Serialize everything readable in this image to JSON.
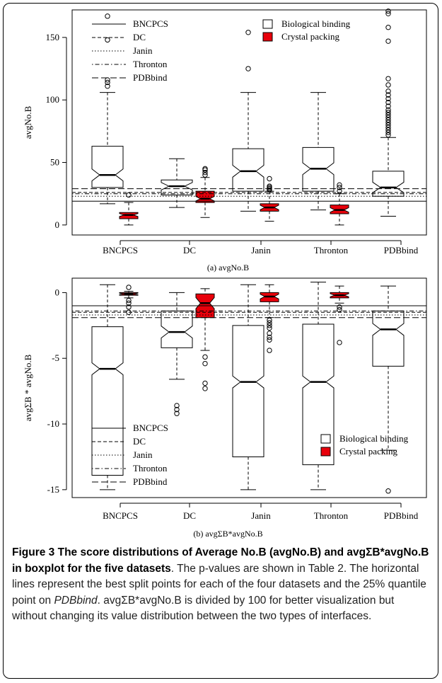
{
  "chart_data": [
    {
      "type": "boxplot",
      "subcaption": "(a) avgNo.B",
      "ylabel": "avgNo.B",
      "ylim": [
        -8,
        172
      ],
      "yticks": [
        0,
        50,
        100,
        150
      ],
      "categories": [
        "BNCPCS",
        "DC",
        "Janin",
        "Thronton",
        "PDBbind"
      ],
      "series": [
        {
          "name": "Biological binding",
          "boxes": [
            {
              "category": "BNCPCS",
              "whisker_low": 17,
              "q1": 30,
              "median": 40,
              "q3": 63,
              "whisker_high": 106,
              "outliers": [
                111,
                114,
                116,
                148,
                167
              ]
            },
            {
              "category": "DC",
              "whisker_low": 14,
              "q1": 24,
              "median": 31,
              "q3": 36,
              "whisker_high": 53,
              "outliers": []
            },
            {
              "category": "Janin",
              "whisker_low": 11,
              "q1": 27,
              "median": 43,
              "q3": 61,
              "whisker_high": 106,
              "outliers": [
                125,
                154
              ]
            },
            {
              "category": "Thronton",
              "whisker_low": 12,
              "q1": 27,
              "median": 45,
              "q3": 62,
              "whisker_high": 106,
              "outliers": []
            },
            {
              "category": "PDBbind",
              "whisker_low": 7,
              "q1": 23,
              "median": 30,
              "q3": 43,
              "whisker_high": 70,
              "outliers": [
                72,
                74,
                76,
                78,
                80,
                82,
                84,
                86,
                88,
                90,
                92,
                95,
                98,
                101,
                104,
                107,
                112,
                117,
                147,
                158,
                169,
                171
              ]
            }
          ]
        },
        {
          "name": "Crystal packing",
          "boxes": [
            {
              "category": "BNCPCS",
              "whisker_low": 0,
              "q1": 5,
              "median": 8,
              "q3": 10,
              "whisker_high": 18,
              "outliers": [
                24
              ]
            },
            {
              "category": "DC",
              "whisker_low": 6,
              "q1": 18,
              "median": 21,
              "q3": 27,
              "whisker_high": 38,
              "outliers": [
                40,
                42,
                44,
                45
              ]
            },
            {
              "category": "Janin",
              "whisker_low": 3,
              "q1": 11,
              "median": 14,
              "q3": 17,
              "whisker_high": 27,
              "outliers": [
                28,
                29,
                30,
                31,
                37
              ]
            },
            {
              "category": "Thronton",
              "whisker_low": 0,
              "q1": 9,
              "median": 12,
              "q3": 16,
              "whisker_high": 25,
              "outliers": [
                27,
                30,
                32
              ]
            }
          ]
        }
      ],
      "reference_lines": [
        {
          "name": "BNCPCS",
          "style": "solid",
          "value": 19
        },
        {
          "name": "DC",
          "style": "dashed",
          "value": 26
        },
        {
          "name": "Janin",
          "style": "dotted",
          "value": 23
        },
        {
          "name": "Thronton",
          "style": "dotdash",
          "value": 25
        },
        {
          "name": "PDBbind",
          "style": "longdash",
          "value": 29
        }
      ],
      "legend_placement": "top"
    },
    {
      "type": "boxplot",
      "subcaption": "(b) avgΣB*avgNo.B",
      "ylabel": "avgΣB * avgNo.B",
      "ylim": [
        -15.6,
        1.1
      ],
      "yticks": [
        0,
        -5,
        -10,
        -15
      ],
      "categories": [
        "BNCPCS",
        "DC",
        "Janin",
        "Thronton",
        "PDBbind"
      ],
      "series": [
        {
          "name": "Biological binding",
          "boxes": [
            {
              "category": "BNCPCS",
              "whisker_low": -15,
              "q1": -13.9,
              "median": -5.8,
              "q3": -2.6,
              "whisker_high": 0.6,
              "outliers": []
            },
            {
              "category": "DC",
              "whisker_low": -6.6,
              "q1": -4.2,
              "median": -3.0,
              "q3": -1.4,
              "whisker_high": 0,
              "outliers": [
                -8.6,
                -8.9,
                -9.2
              ]
            },
            {
              "category": "Janin",
              "whisker_low": -15,
              "q1": -12.5,
              "median": -6.8,
              "q3": -2.5,
              "whisker_high": 0.6,
              "outliers": []
            },
            {
              "category": "Thronton",
              "whisker_low": -15,
              "q1": -13.1,
              "median": -6.8,
              "q3": -2.4,
              "whisker_high": 0.8,
              "outliers": []
            },
            {
              "category": "PDBbind",
              "whisker_low": -12,
              "q1": -5.6,
              "median": -2.8,
              "q3": -1.4,
              "whisker_high": 0.5,
              "outliers": [
                -15.1
              ]
            }
          ]
        },
        {
          "name": "Crystal packing",
          "boxes": [
            {
              "category": "BNCPCS",
              "whisker_low": -0.4,
              "q1": -0.2,
              "median": -0.1,
              "q3": 0,
              "whisker_high": 0.1,
              "outliers": [
                0.4,
                -0.6,
                -0.8,
                -1.1,
                -1.5
              ]
            },
            {
              "category": "DC",
              "whisker_low": -4.4,
              "q1": -1.9,
              "median": -0.8,
              "q3": -0.1,
              "whisker_high": 0.3,
              "outliers": [
                -4.9,
                -5.4,
                -6.9,
                -7.3
              ]
            },
            {
              "category": "Janin",
              "whisker_low": -1.9,
              "q1": -0.7,
              "median": -0.3,
              "q3": 0,
              "whisker_high": 0.6,
              "outliers": [
                -2.1,
                -2.3,
                -2.5,
                -2.7,
                -3.1,
                -3.4,
                -3.6,
                -4.4
              ]
            },
            {
              "category": "Thronton",
              "whisker_low": -0.8,
              "q1": -0.4,
              "median": -0.2,
              "q3": 0,
              "whisker_high": 0.5,
              "outliers": [
                -1.1,
                -1.3,
                -3.8
              ]
            }
          ]
        }
      ],
      "reference_lines": [
        {
          "name": "BNCPCS",
          "style": "solid",
          "value": -1.0
        },
        {
          "name": "DC",
          "style": "dashed",
          "value": -1.5
        },
        {
          "name": "Janin",
          "style": "dotted",
          "value": -1.7
        },
        {
          "name": "Thronton",
          "style": "dotdash",
          "value": -1.4
        },
        {
          "name": "PDBbind",
          "style": "longdash",
          "value": -1.9
        }
      ],
      "legend_placement": "bottom"
    }
  ],
  "colors": {
    "biological_fill": "#ffffff",
    "crystal_fill": "#e8000b",
    "stroke": "#000000"
  },
  "caption": {
    "title": "Figure 3 The score distributions of Average No.B (avgNo.B) and avgΣB*avgNo.B in boxplot for the five datasets",
    "body_1": ". The p-values are shown in Table 2. The horizontal lines represent the best split points for each of the four datasets and the 25% quantile point on ",
    "italic_1": "PDBbind",
    "body_2": ". avgΣB*avgNo.B is divided by 100 for better visualization but without changing its value distribution between the two types of interfaces."
  }
}
